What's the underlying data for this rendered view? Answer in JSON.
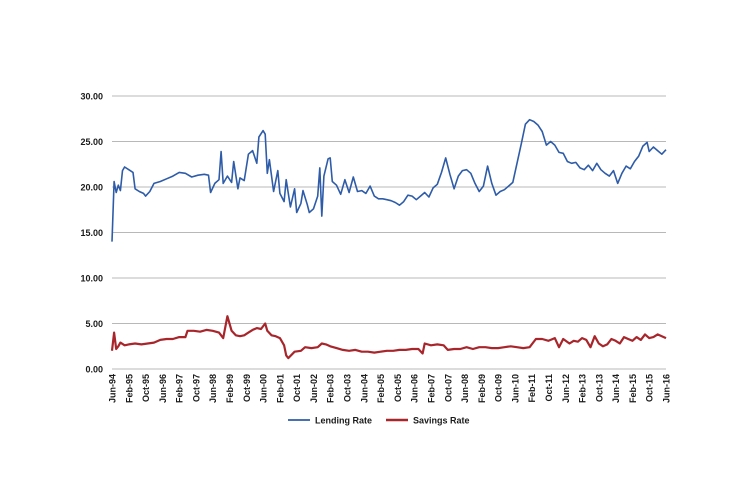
{
  "chart_data": {
    "type": "line",
    "title": "",
    "xlabel": "",
    "ylabel": "",
    "ylim": [
      0,
      30
    ],
    "y_ticks": [
      "30.00",
      "25.00",
      "20.00",
      "15.00",
      "10.00",
      "5.00",
      "0.00"
    ],
    "y_tick_values": [
      30,
      25,
      20,
      15,
      10,
      5,
      0
    ],
    "x_range": [
      "1994-06",
      "2016-06"
    ],
    "x_tick_labels": [
      "Jun-94",
      "Feb-95",
      "Oct-95",
      "Jun-96",
      "Feb-97",
      "Oct-97",
      "Jun-98",
      "Feb-99",
      "Oct-99",
      "Jun-00",
      "Feb-01",
      "Oct-01",
      "Jun-02",
      "Feb-03",
      "Oct-03",
      "Jun-04",
      "Feb-05",
      "Oct-05",
      "Jun-06",
      "Feb-07",
      "Oct-07",
      "Jun-08",
      "Feb-09",
      "Oct-09",
      "Jun-10",
      "Feb-11",
      "Oct-11",
      "Jun-12",
      "Feb-13",
      "Oct-13",
      "Jun-14",
      "Feb-15",
      "Oct-15",
      "Jun-16"
    ],
    "grid": "horizontal",
    "legend_position": "bottom",
    "series": [
      {
        "name": "Lending Rate",
        "color": "#2e5ca8",
        "points": [
          [
            "1994-06",
            14.0
          ],
          [
            "1994-07",
            20.6
          ],
          [
            "1994-08",
            19.4
          ],
          [
            "1994-09",
            20.2
          ],
          [
            "1994-10",
            19.6
          ],
          [
            "1994-11",
            21.8
          ],
          [
            "1994-12",
            22.2
          ],
          [
            "1995-02",
            21.9
          ],
          [
            "1995-04",
            21.6
          ],
          [
            "1995-05",
            19.8
          ],
          [
            "1995-07",
            19.5
          ],
          [
            "1995-09",
            19.3
          ],
          [
            "1995-10",
            19.0
          ],
          [
            "1995-12",
            19.5
          ],
          [
            "1996-02",
            20.4
          ],
          [
            "1996-05",
            20.6
          ],
          [
            "1996-08",
            20.9
          ],
          [
            "1996-11",
            21.2
          ],
          [
            "1997-02",
            21.6
          ],
          [
            "1997-05",
            21.5
          ],
          [
            "1997-08",
            21.1
          ],
          [
            "1997-11",
            21.3
          ],
          [
            "1998-02",
            21.4
          ],
          [
            "1998-04",
            21.3
          ],
          [
            "1998-05",
            19.4
          ],
          [
            "1998-07",
            20.4
          ],
          [
            "1998-09",
            20.8
          ],
          [
            "1998-10",
            23.9
          ],
          [
            "1998-11",
            20.4
          ],
          [
            "1999-01",
            21.2
          ],
          [
            "1999-03",
            20.5
          ],
          [
            "1999-04",
            22.8
          ],
          [
            "1999-06",
            19.8
          ],
          [
            "1999-07",
            21.0
          ],
          [
            "1999-09",
            20.7
          ],
          [
            "1999-11",
            23.6
          ],
          [
            "2000-01",
            24.0
          ],
          [
            "2000-03",
            22.6
          ],
          [
            "2000-04",
            25.5
          ],
          [
            "2000-06",
            26.2
          ],
          [
            "2000-07",
            25.8
          ],
          [
            "2000-08",
            21.5
          ],
          [
            "2000-09",
            23.0
          ],
          [
            "2000-11",
            19.5
          ],
          [
            "2001-01",
            21.8
          ],
          [
            "2001-02",
            19.3
          ],
          [
            "2001-04",
            18.4
          ],
          [
            "2001-05",
            20.8
          ],
          [
            "2001-07",
            17.8
          ],
          [
            "2001-09",
            19.8
          ],
          [
            "2001-10",
            17.2
          ],
          [
            "2001-12",
            18.2
          ],
          [
            "2002-01",
            19.6
          ],
          [
            "2002-03",
            18.1
          ],
          [
            "2002-04",
            17.2
          ],
          [
            "2002-06",
            17.6
          ],
          [
            "2002-08",
            19.0
          ],
          [
            "2002-09",
            22.1
          ],
          [
            "2002-10",
            16.8
          ],
          [
            "2002-11",
            21.2
          ],
          [
            "2003-01",
            23.1
          ],
          [
            "2003-02",
            23.2
          ],
          [
            "2003-03",
            20.6
          ],
          [
            "2003-05",
            20.2
          ],
          [
            "2003-07",
            19.2
          ],
          [
            "2003-09",
            20.8
          ],
          [
            "2003-11",
            19.4
          ],
          [
            "2004-01",
            21.1
          ],
          [
            "2004-03",
            19.5
          ],
          [
            "2004-05",
            19.6
          ],
          [
            "2004-07",
            19.3
          ],
          [
            "2004-09",
            20.1
          ],
          [
            "2004-11",
            19.0
          ],
          [
            "2005-01",
            18.7
          ],
          [
            "2005-03",
            18.7
          ],
          [
            "2005-05",
            18.6
          ],
          [
            "2005-07",
            18.5
          ],
          [
            "2005-09",
            18.3
          ],
          [
            "2005-11",
            18.0
          ],
          [
            "2006-01",
            18.4
          ],
          [
            "2006-03",
            19.1
          ],
          [
            "2006-05",
            19.0
          ],
          [
            "2006-07",
            18.6
          ],
          [
            "2006-09",
            19.0
          ],
          [
            "2006-11",
            19.4
          ],
          [
            "2007-01",
            18.9
          ],
          [
            "2007-03",
            19.9
          ],
          [
            "2007-05",
            20.3
          ],
          [
            "2007-07",
            21.6
          ],
          [
            "2007-09",
            23.2
          ],
          [
            "2007-11",
            21.4
          ],
          [
            "2008-01",
            19.8
          ],
          [
            "2008-03",
            21.2
          ],
          [
            "2008-05",
            21.8
          ],
          [
            "2008-07",
            21.9
          ],
          [
            "2008-09",
            21.5
          ],
          [
            "2008-11",
            20.4
          ],
          [
            "2009-01",
            19.5
          ],
          [
            "2009-03",
            20.1
          ],
          [
            "2009-05",
            22.3
          ],
          [
            "2009-07",
            20.4
          ],
          [
            "2009-09",
            19.1
          ],
          [
            "2009-11",
            19.5
          ],
          [
            "2010-01",
            19.7
          ],
          [
            "2010-03",
            20.1
          ],
          [
            "2010-05",
            20.5
          ],
          [
            "2010-07",
            22.6
          ],
          [
            "2010-09",
            24.7
          ],
          [
            "2010-11",
            26.9
          ],
          [
            "2011-01",
            27.4
          ],
          [
            "2011-03",
            27.2
          ],
          [
            "2011-05",
            26.8
          ],
          [
            "2011-07",
            26.1
          ],
          [
            "2011-09",
            24.6
          ],
          [
            "2011-11",
            25.0
          ],
          [
            "2012-01",
            24.6
          ],
          [
            "2012-03",
            23.8
          ],
          [
            "2012-05",
            23.7
          ],
          [
            "2012-07",
            22.8
          ],
          [
            "2012-09",
            22.6
          ],
          [
            "2012-11",
            22.7
          ],
          [
            "2013-01",
            22.1
          ],
          [
            "2013-03",
            21.9
          ],
          [
            "2013-05",
            22.4
          ],
          [
            "2013-07",
            21.8
          ],
          [
            "2013-09",
            22.6
          ],
          [
            "2013-11",
            21.9
          ],
          [
            "2014-01",
            21.5
          ],
          [
            "2014-03",
            21.2
          ],
          [
            "2014-05",
            21.8
          ],
          [
            "2014-07",
            20.4
          ],
          [
            "2014-09",
            21.5
          ],
          [
            "2014-11",
            22.3
          ],
          [
            "2015-01",
            22.0
          ],
          [
            "2015-03",
            22.8
          ],
          [
            "2015-05",
            23.4
          ],
          [
            "2015-07",
            24.5
          ],
          [
            "2015-09",
            24.9
          ],
          [
            "2015-10",
            23.9
          ],
          [
            "2015-12",
            24.4
          ],
          [
            "2016-02",
            24.0
          ],
          [
            "2016-04",
            23.6
          ],
          [
            "2016-06",
            24.1
          ]
        ]
      },
      {
        "name": "Savings Rate",
        "color": "#a8262b",
        "points": [
          [
            "1994-06",
            2.0
          ],
          [
            "1994-07",
            4.0
          ],
          [
            "1994-08",
            2.2
          ],
          [
            "1994-09",
            2.5
          ],
          [
            "1994-10",
            2.9
          ],
          [
            "1994-12",
            2.6
          ],
          [
            "1995-02",
            2.7
          ],
          [
            "1995-05",
            2.8
          ],
          [
            "1995-08",
            2.7
          ],
          [
            "1995-11",
            2.8
          ],
          [
            "1996-02",
            2.9
          ],
          [
            "1996-05",
            3.2
          ],
          [
            "1996-08",
            3.3
          ],
          [
            "1996-11",
            3.3
          ],
          [
            "1997-02",
            3.5
          ],
          [
            "1997-05",
            3.5
          ],
          [
            "1997-06",
            4.2
          ],
          [
            "1997-09",
            4.2
          ],
          [
            "1997-12",
            4.1
          ],
          [
            "1998-03",
            4.3
          ],
          [
            "1998-06",
            4.2
          ],
          [
            "1998-09",
            4.0
          ],
          [
            "1998-11",
            3.4
          ],
          [
            "1999-01",
            5.8
          ],
          [
            "1999-03",
            4.2
          ],
          [
            "1999-05",
            3.7
          ],
          [
            "1999-07",
            3.6
          ],
          [
            "1999-09",
            3.7
          ],
          [
            "1999-11",
            4.0
          ],
          [
            "2000-01",
            4.3
          ],
          [
            "2000-03",
            4.5
          ],
          [
            "2000-05",
            4.4
          ],
          [
            "2000-07",
            5.0
          ],
          [
            "2000-08",
            4.2
          ],
          [
            "2000-10",
            3.7
          ],
          [
            "2000-12",
            3.6
          ],
          [
            "2001-02",
            3.4
          ],
          [
            "2001-04",
            2.6
          ],
          [
            "2001-05",
            1.5
          ],
          [
            "2001-06",
            1.2
          ],
          [
            "2001-09",
            1.9
          ],
          [
            "2001-12",
            2.0
          ],
          [
            "2002-02",
            2.4
          ],
          [
            "2002-05",
            2.3
          ],
          [
            "2002-08",
            2.4
          ],
          [
            "2002-10",
            2.8
          ],
          [
            "2002-12",
            2.7
          ],
          [
            "2003-02",
            2.5
          ],
          [
            "2003-05",
            2.3
          ],
          [
            "2003-08",
            2.1
          ],
          [
            "2003-11",
            2.0
          ],
          [
            "2004-02",
            2.1
          ],
          [
            "2004-05",
            1.9
          ],
          [
            "2004-08",
            1.9
          ],
          [
            "2004-11",
            1.8
          ],
          [
            "2005-02",
            1.9
          ],
          [
            "2005-05",
            2.0
          ],
          [
            "2005-08",
            2.0
          ],
          [
            "2005-11",
            2.1
          ],
          [
            "2006-02",
            2.1
          ],
          [
            "2006-05",
            2.2
          ],
          [
            "2006-08",
            2.2
          ],
          [
            "2006-10",
            1.7
          ],
          [
            "2006-11",
            2.8
          ],
          [
            "2007-02",
            2.6
          ],
          [
            "2007-05",
            2.7
          ],
          [
            "2007-08",
            2.6
          ],
          [
            "2007-10",
            2.1
          ],
          [
            "2008-01",
            2.2
          ],
          [
            "2008-04",
            2.2
          ],
          [
            "2008-07",
            2.4
          ],
          [
            "2008-10",
            2.2
          ],
          [
            "2009-01",
            2.4
          ],
          [
            "2009-04",
            2.4
          ],
          [
            "2009-07",
            2.3
          ],
          [
            "2009-10",
            2.3
          ],
          [
            "2010-01",
            2.4
          ],
          [
            "2010-04",
            2.5
          ],
          [
            "2010-07",
            2.4
          ],
          [
            "2010-10",
            2.3
          ],
          [
            "2011-01",
            2.4
          ],
          [
            "2011-04",
            3.3
          ],
          [
            "2011-07",
            3.3
          ],
          [
            "2011-10",
            3.1
          ],
          [
            "2012-01",
            3.4
          ],
          [
            "2012-03",
            2.4
          ],
          [
            "2012-05",
            3.3
          ],
          [
            "2012-08",
            2.8
          ],
          [
            "2012-10",
            3.1
          ],
          [
            "2012-12",
            3.0
          ],
          [
            "2013-02",
            3.4
          ],
          [
            "2013-04",
            3.2
          ],
          [
            "2013-06",
            2.4
          ],
          [
            "2013-08",
            3.6
          ],
          [
            "2013-10",
            2.8
          ],
          [
            "2013-12",
            2.5
          ],
          [
            "2014-02",
            2.7
          ],
          [
            "2014-04",
            3.3
          ],
          [
            "2014-06",
            3.1
          ],
          [
            "2014-08",
            2.8
          ],
          [
            "2014-10",
            3.5
          ],
          [
            "2014-12",
            3.3
          ],
          [
            "2015-02",
            3.1
          ],
          [
            "2015-04",
            3.5
          ],
          [
            "2015-06",
            3.2
          ],
          [
            "2015-08",
            3.8
          ],
          [
            "2015-10",
            3.4
          ],
          [
            "2015-12",
            3.5
          ],
          [
            "2016-02",
            3.8
          ],
          [
            "2016-04",
            3.6
          ],
          [
            "2016-06",
            3.4
          ]
        ]
      }
    ]
  }
}
